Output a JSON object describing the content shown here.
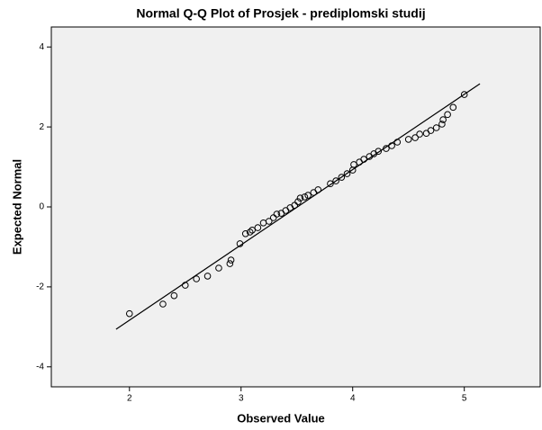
{
  "chart_data": {
    "type": "scatter",
    "title": "Normal Q-Q Plot of Prosjek - prediplomski studij",
    "x_label": "Observed Value",
    "y_label": "Expected Normal",
    "xlim": [
      1.3,
      5.68
    ],
    "ylim": [
      -4.5,
      4.5
    ],
    "xticks": [
      2,
      3,
      4,
      5
    ],
    "yticks": [
      -4,
      -2,
      0,
      2,
      4
    ],
    "grid": false,
    "background": "#f0f0f0",
    "marker_color": "#000000",
    "line_color": "#000000",
    "reference_line": {
      "x": [
        1.88,
        5.14
      ],
      "y": [
        -3.06,
        3.08
      ]
    },
    "x": [
      2.0,
      2.3,
      2.4,
      2.5,
      2.6,
      2.7,
      2.8,
      2.9,
      2.91,
      2.99,
      3.04,
      3.08,
      3.1,
      3.15,
      3.2,
      3.25,
      3.29,
      3.32,
      3.36,
      3.4,
      3.44,
      3.48,
      3.51,
      3.53,
      3.57,
      3.6,
      3.65,
      3.69,
      3.8,
      3.85,
      3.9,
      3.95,
      4.0,
      4.01,
      4.06,
      4.1,
      4.15,
      4.19,
      4.23,
      4.3,
      4.35,
      4.4,
      4.5,
      4.56,
      4.6,
      4.66,
      4.7,
      4.75,
      4.8,
      4.81,
      4.85,
      4.9,
      5.0
    ],
    "values": [
      -2.67,
      -2.43,
      -2.22,
      -1.96,
      -1.8,
      -1.73,
      -1.53,
      -1.42,
      -1.33,
      -0.92,
      -0.67,
      -0.63,
      -0.58,
      -0.52,
      -0.4,
      -0.36,
      -0.27,
      -0.18,
      -0.16,
      -0.09,
      -0.02,
      0.04,
      0.13,
      0.22,
      0.25,
      0.29,
      0.36,
      0.43,
      0.58,
      0.65,
      0.74,
      0.83,
      0.92,
      1.06,
      1.12,
      1.19,
      1.26,
      1.33,
      1.39,
      1.46,
      1.53,
      1.62,
      1.69,
      1.73,
      1.82,
      1.84,
      1.91,
      1.98,
      2.07,
      2.18,
      2.31,
      2.49,
      2.81
    ]
  }
}
